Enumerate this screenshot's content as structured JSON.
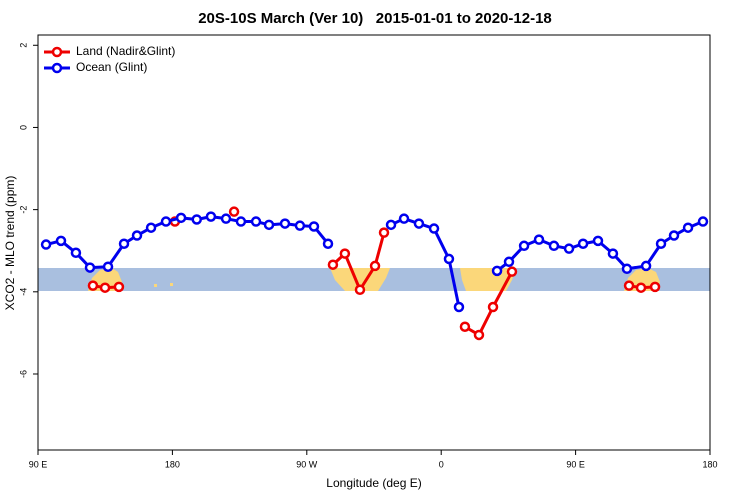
{
  "chart_data": {
    "type": "line",
    "title": "20S-10S March (Ver 10)   2015-01-01 to 2020-12-18",
    "xlabel": "Longitude (deg E)",
    "ylabel": "XCO2 - MLO trend (ppm)",
    "xlim": [
      90,
      540
    ],
    "ylim": [
      -7.85,
      2.25
    ],
    "xticks": [
      {
        "value": 90,
        "label": "90 E"
      },
      180,
      {
        "value": 270,
        "label": "90 W"
      },
      {
        "value": 360,
        "label": "0"
      },
      {
        "value": 450,
        "label": "90 E"
      },
      {
        "value": 540,
        "label": "180"
      }
    ],
    "yticks": [
      2,
      0,
      -2,
      -4,
      -6
    ],
    "legend": "top-left",
    "series": [
      {
        "name": "Land (Nadir&Glint)",
        "color": "#ee0000",
        "x": [
          126.8,
          134.9,
          144.2,
          160,
          181.7,
          200,
          221.3,
          260,
          287.5,
          295.5,
          305.6,
          315.7,
          321.7,
          340,
          375.9,
          385.3,
          394.7,
          407.4,
          450,
          485.8,
          493.8,
          503.2
        ],
        "values": [
          -3.85,
          -3.9,
          -3.88,
          null,
          -2.29,
          null,
          -2.05,
          null,
          -3.34,
          -3.07,
          -3.95,
          -3.37,
          -2.56,
          null,
          -4.85,
          -5.05,
          -4.37,
          -3.51,
          null,
          -3.85,
          -3.9,
          -3.88
        ]
      },
      {
        "name": "Ocean (Glint)",
        "color": "#0000ee",
        "x": [
          95.4,
          105.4,
          115.4,
          124.8,
          136.9,
          147.6,
          156.3,
          165.7,
          175.7,
          185.8,
          196.3,
          205.8,
          215.9,
          225.9,
          236,
          244.7,
          255.4,
          265.4,
          274.8,
          284.2,
          305,
          326.4,
          335.1,
          345.1,
          355.2,
          365.2,
          371.9,
          385,
          397.4,
          405.4,
          415.5,
          425.5,
          435.5,
          445.6,
          455,
          465,
          475,
          484.4,
          497.2,
          507.2,
          515.9,
          525.3,
          535.3
        ],
        "values": [
          -2.85,
          -2.76,
          -3.05,
          -3.41,
          -3.39,
          -2.83,
          -2.63,
          -2.44,
          -2.29,
          -2.2,
          -2.24,
          -2.17,
          -2.22,
          -2.29,
          -2.29,
          -2.37,
          -2.34,
          -2.39,
          -2.41,
          -2.83,
          null,
          -2.37,
          -2.22,
          -2.34,
          -2.46,
          -3.2,
          -4.37,
          null,
          -3.49,
          -3.27,
          -2.88,
          -2.73,
          -2.88,
          -2.95,
          -2.83,
          -2.76,
          -3.07,
          -3.44,
          -3.37,
          -2.83,
          -2.63,
          -2.44,
          -2.29
        ]
      }
    ]
  }
}
